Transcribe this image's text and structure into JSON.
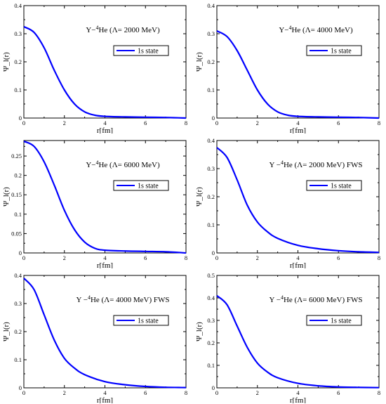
{
  "chart_data": [
    {
      "type": "line",
      "title": "",
      "xlabel": "r[fm]",
      "ylabel": "Ψ_l(r)",
      "xlim": [
        0,
        8
      ],
      "ylim": [
        0,
        0.4
      ],
      "x_ticks": [
        "0",
        "2",
        "4",
        "6",
        "8"
      ],
      "y_ticks": [
        "0",
        "0.1",
        "0.2",
        "0.3",
        "0.4"
      ],
      "annotation": {
        "pre": "Y−",
        "sup": "4",
        "post": "He (Λ= 2000 MeV)"
      },
      "legend": "1s state",
      "series": [
        {
          "name": "1s state",
          "color": "#0000ff",
          "x": [
            0,
            0.5,
            1,
            1.5,
            2,
            2.5,
            3,
            3.5,
            4,
            5,
            6,
            7,
            8
          ],
          "y": [
            0.325,
            0.305,
            0.25,
            0.17,
            0.1,
            0.05,
            0.022,
            0.01,
            0.006,
            0.004,
            0.003,
            0.002,
            0.0
          ]
        }
      ]
    },
    {
      "type": "line",
      "title": "",
      "xlabel": "r[fm]",
      "ylabel": "Ψ_l(r)",
      "xlim": [
        0,
        8
      ],
      "ylim": [
        0,
        0.4
      ],
      "x_ticks": [
        "0",
        "2",
        "4",
        "6",
        "8"
      ],
      "y_ticks": [
        "0",
        "0.1",
        "0.2",
        "0.3",
        "0.4"
      ],
      "annotation": {
        "pre": "Y−",
        "sup": "4",
        "post": "He (Λ= 4000 MeV)"
      },
      "legend": "1s state",
      "series": [
        {
          "name": "1s state",
          "color": "#0000ff",
          "x": [
            0,
            0.5,
            1,
            1.5,
            2,
            2.5,
            3,
            3.5,
            4,
            5,
            6,
            7,
            8
          ],
          "y": [
            0.31,
            0.29,
            0.24,
            0.17,
            0.1,
            0.05,
            0.022,
            0.01,
            0.006,
            0.004,
            0.003,
            0.002,
            0.0
          ]
        }
      ]
    },
    {
      "type": "line",
      "title": "",
      "xlabel": "r[fm]",
      "ylabel": "Ψ_l(r)",
      "xlim": [
        0,
        8
      ],
      "ylim": [
        0,
        0.29
      ],
      "x_ticks": [
        "0",
        "2",
        "4",
        "6",
        "8"
      ],
      "y_ticks": [
        "0",
        "0.05",
        "0.1",
        "0.15",
        "0.2",
        "0.25"
      ],
      "annotation": {
        "pre": "Y−",
        "sup": "4",
        "post": "He (Λ= 6000 MeV)"
      },
      "legend": "1s state",
      "series": [
        {
          "name": "1s state",
          "color": "#0000ff",
          "x": [
            0,
            0.5,
            1,
            1.5,
            2,
            2.5,
            3,
            3.5,
            4,
            5,
            6,
            7,
            8
          ],
          "y": [
            0.288,
            0.275,
            0.235,
            0.175,
            0.11,
            0.06,
            0.028,
            0.012,
            0.007,
            0.005,
            0.004,
            0.003,
            0.0
          ]
        }
      ]
    },
    {
      "type": "line",
      "title": "",
      "xlabel": "r[fm]",
      "ylabel": "Ψ_l(r)",
      "xlim": [
        0,
        8
      ],
      "ylim": [
        0,
        0.4
      ],
      "x_ticks": [
        "0",
        "2",
        "4",
        "6",
        "8"
      ],
      "y_ticks": [
        "0",
        "0.1",
        "0.2",
        "0.3",
        "0.4"
      ],
      "annotation": {
        "pre": "Y −",
        "sup": "4",
        "post": "He (Λ= 2000 MeV) FWS"
      },
      "legend": "1s state",
      "series": [
        {
          "name": "1s state",
          "color": "#0000ff",
          "x": [
            0,
            0.5,
            1,
            1.5,
            2,
            2.5,
            3,
            4,
            5,
            6,
            7,
            8
          ],
          "y": [
            0.375,
            0.34,
            0.26,
            0.17,
            0.11,
            0.075,
            0.052,
            0.027,
            0.015,
            0.008,
            0.004,
            0.002
          ]
        }
      ]
    },
    {
      "type": "line",
      "title": "",
      "xlabel": "r[fm]",
      "ylabel": "Ψ_l(r)",
      "xlim": [
        0,
        8
      ],
      "ylim": [
        0,
        0.4
      ],
      "x_ticks": [
        "0",
        "2",
        "4",
        "6",
        "8"
      ],
      "y_ticks": [
        "0",
        "0.1",
        "0.2",
        "0.3",
        "0.4"
      ],
      "annotation": {
        "pre": "Y −",
        "sup": "4",
        "post": "He (Λ= 4000 MeV) FWS"
      },
      "legend": "1s state",
      "series": [
        {
          "name": "1s state",
          "color": "#0000ff",
          "x": [
            0,
            0.5,
            1,
            1.5,
            2,
            2.5,
            3,
            4,
            5,
            6,
            7,
            8
          ],
          "y": [
            0.39,
            0.35,
            0.26,
            0.17,
            0.105,
            0.07,
            0.047,
            0.022,
            0.011,
            0.005,
            0.002,
            0.001
          ]
        }
      ]
    },
    {
      "type": "line",
      "title": "",
      "xlabel": "r[fm]",
      "ylabel": "Ψ_l(r)",
      "xlim": [
        0,
        8
      ],
      "ylim": [
        0,
        0.5
      ],
      "x_ticks": [
        "0",
        "2",
        "4",
        "6",
        "8"
      ],
      "y_ticks": [
        "0",
        "0.1",
        "0.2",
        "0.3",
        "0.4",
        "0.5"
      ],
      "annotation": {
        "pre": "Y −",
        "sup": "4",
        "post": "He (Λ= 6000 MeV) FWS"
      },
      "legend": "1s state",
      "series": [
        {
          "name": "1s state",
          "color": "#0000ff",
          "x": [
            0,
            0.5,
            1,
            1.5,
            2,
            2.5,
            3,
            4,
            5,
            6,
            7,
            8
          ],
          "y": [
            0.41,
            0.37,
            0.275,
            0.18,
            0.11,
            0.07,
            0.045,
            0.02,
            0.009,
            0.004,
            0.002,
            0.001
          ]
        }
      ]
    }
  ]
}
